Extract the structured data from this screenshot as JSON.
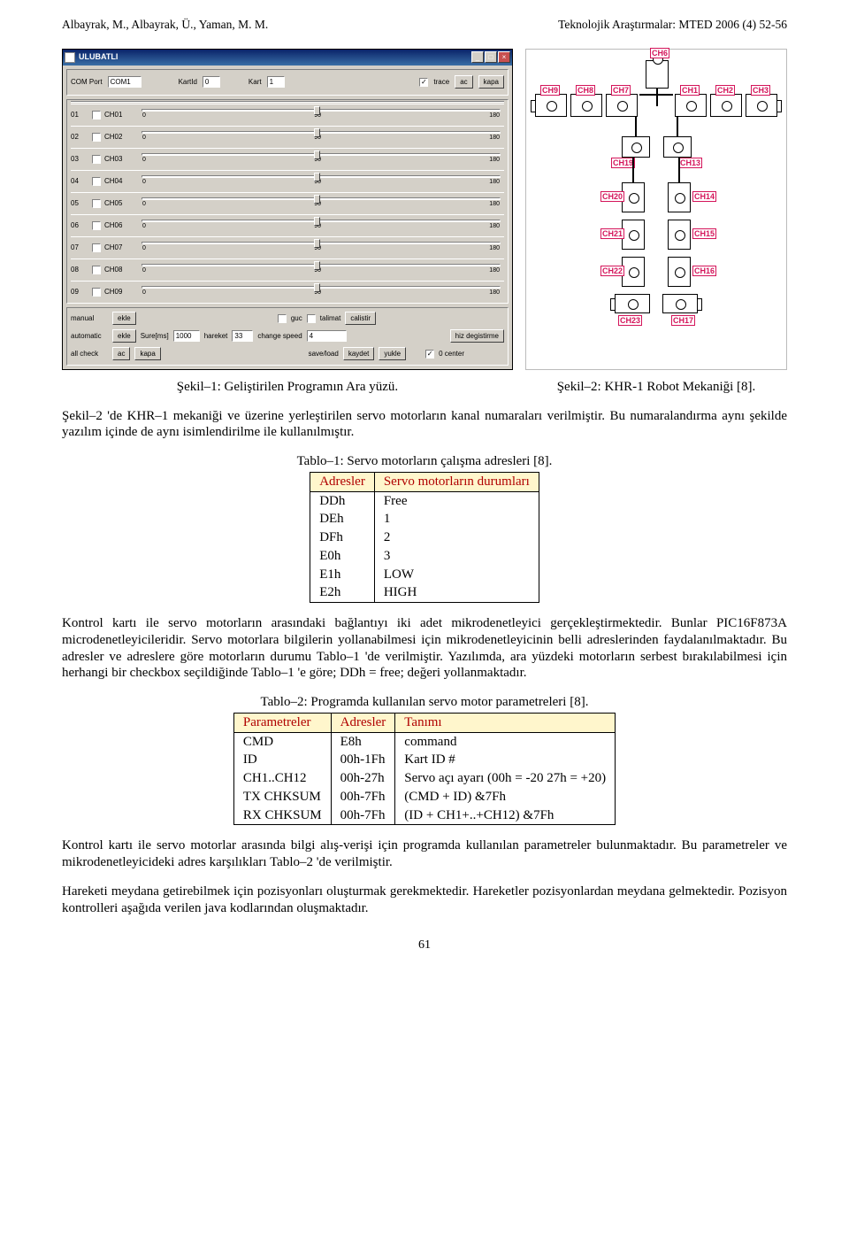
{
  "header": {
    "authors": "Albayrak, M., Albayrak, Ü., Yaman, M. M.",
    "journal": "Teknolojik Araştırmalar: MTED 2006 (4) 52-56"
  },
  "ulubatli": {
    "title": "ULUBATLI",
    "top": {
      "comport_label": "COM Port",
      "comport_value": "COM1",
      "kartid_label": "KartId",
      "kartid_value": "0",
      "kart_label": "Kart",
      "kart_value": "1",
      "trace_checked": true,
      "trace_label": "trace",
      "ac": "ac",
      "kapa": "kapa"
    },
    "channels": [
      {
        "idx": "01",
        "name": "CH01",
        "min": "0",
        "mid": "90",
        "max": "180"
      },
      {
        "idx": "02",
        "name": "CH02",
        "min": "0",
        "mid": "90",
        "max": "180"
      },
      {
        "idx": "03",
        "name": "CH03",
        "min": "0",
        "mid": "90",
        "max": "180"
      },
      {
        "idx": "04",
        "name": "CH04",
        "min": "0",
        "mid": "90",
        "max": "180"
      },
      {
        "idx": "05",
        "name": "CH05",
        "min": "0",
        "mid": "90",
        "max": "180"
      },
      {
        "idx": "06",
        "name": "CH06",
        "min": "0",
        "mid": "90",
        "max": "180"
      },
      {
        "idx": "07",
        "name": "CH07",
        "min": "0",
        "mid": "90",
        "max": "180"
      },
      {
        "idx": "08",
        "name": "CH08",
        "min": "0",
        "mid": "90",
        "max": "180"
      },
      {
        "idx": "09",
        "name": "CH09",
        "min": "0",
        "mid": "90",
        "max": "180"
      }
    ],
    "bottom": {
      "manual": "manual",
      "ekle": "ekle",
      "guc_label": "guc",
      "talimat_label": "talimat",
      "calistir": "calistir",
      "automatic": "automatic",
      "sure_label": "Sure[ms]",
      "sure_value": "1000",
      "hareket_label": "hareket",
      "hareket_value": "33",
      "change_speed_label": "change speed",
      "change_speed_value": "4",
      "hiz_degistirme": "hiz degistirme",
      "all_check": "all check",
      "ac": "ac",
      "kapa": "kapa",
      "save_load_label": "save/load",
      "kaydet": "kaydet",
      "yukle": "yukle",
      "zero_center_label": "0 center",
      "zero_center_checked": true
    }
  },
  "robot": {
    "tags": [
      "CH6",
      "CH9",
      "CH8",
      "CH7",
      "CH1",
      "CH2",
      "CH3",
      "CH19",
      "CH13",
      "CH20",
      "CH14",
      "CH21",
      "CH15",
      "CH22",
      "CH16",
      "CH23",
      "CH17"
    ]
  },
  "captions": {
    "fig1": "Şekil–1: Geliştirilen Programın Ara yüzü.",
    "fig2": "Şekil–2: KHR-1 Robot Mekaniği [8]."
  },
  "para1": "Şekil–2 'de KHR–1 mekaniği ve üzerine yerleştirilen servo motorların kanal numaraları verilmiştir. Bu numaralandırma aynı şekilde yazılım içinde de aynı isimlendirilme ile kullanılmıştır.",
  "table1": {
    "caption": "Tablo–1: Servo motorların çalışma adresleri [8].",
    "head": [
      "Adresler",
      "Servo motorların durumları"
    ],
    "rows": [
      [
        "DDh",
        "Free"
      ],
      [
        "DEh",
        "1"
      ],
      [
        "DFh",
        "2"
      ],
      [
        "E0h",
        "3"
      ],
      [
        "E1h",
        "LOW"
      ],
      [
        "E2h",
        "HIGH"
      ]
    ]
  },
  "para2": "Kontrol kartı ile servo motorların arasındaki bağlantıyı iki adet mikrodenetleyici gerçekleştirmektedir. Bunlar PIC16F873A microdenetleyicileridir. Servo motorlara bilgilerin yollanabilmesi için mikrodenetleyicinin belli adreslerinden faydalanılmaktadır. Bu adresler ve adreslere göre motorların durumu Tablo–1 'de verilmiştir. Yazılımda, ara yüzdeki motorların serbest bırakılabilmesi için herhangi bir checkbox seçildiğinde Tablo–1 'e göre; DDh = free; değeri yollanmaktadır.",
  "table2": {
    "caption": "Tablo–2: Programda kullanılan servo motor parametreleri [8].",
    "head": [
      "Parametreler",
      "Adresler",
      "Tanımı"
    ],
    "rows": [
      [
        "CMD",
        "E8h",
        "command"
      ],
      [
        "ID",
        "00h-1Fh",
        "Kart ID #"
      ],
      [
        "CH1..CH12",
        "00h-27h",
        "Servo açı ayarı (00h = -20 27h = +20)"
      ],
      [
        "TX CHKSUM",
        "00h-7Fh",
        "(CMD + ID) &7Fh"
      ],
      [
        "RX CHKSUM",
        "00h-7Fh",
        "(ID + CH1+..+CH12) &7Fh"
      ]
    ]
  },
  "para3": "Kontrol kartı ile servo motorlar arasında bilgi alış-verişi için programda kullanılan parametreler bulunmaktadır. Bu parametreler ve mikrodenetleyicideki adres karşılıkları Tablo–2 'de verilmiştir.",
  "para4": "Hareketi meydana getirebilmek için pozisyonları oluşturmak gerekmektedir. Hareketler pozisyonlardan meydana gelmektedir. Pozisyon kontrolleri aşağıda verilen java kodlarından oluşmaktadır.",
  "pagenum": "61"
}
